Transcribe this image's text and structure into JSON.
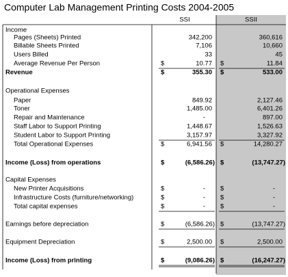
{
  "title": "Computer Lab Management Printing Costs 2004-2005",
  "columns": [
    "SSI",
    "SSII"
  ],
  "rows": [
    {
      "label": "Income"
    },
    {
      "label": "Pages (Sheets) Printed",
      "ssi": "342,200",
      "ssii": "360,616"
    },
    {
      "label": "Billable Sheets Printed",
      "ssi": "7,106",
      "ssii": "10,660"
    },
    {
      "label": "Users Billed",
      "ssi": "33",
      "ssii": "45"
    },
    {
      "label": "Average Revenue Per Person",
      "ssi_sign": "$",
      "ssi": "10.77",
      "ssii_sign": "$",
      "ssii": "11.84"
    },
    {
      "label": "Revenue",
      "ssi_sign": "$",
      "ssi": "355.30",
      "ssii_sign": "$",
      "ssii": "533.00"
    },
    {
      "label": "Operational Expenses"
    },
    {
      "label": "Paper",
      "ssi": "849.92",
      "ssii": "2,127.46"
    },
    {
      "label": "Toner",
      "ssi": "1,485.00",
      "ssii": "6,401.26"
    },
    {
      "label": "Repair and Maintenance",
      "ssi": "-",
      "ssii": "897.00"
    },
    {
      "label": "Staff Labor to Support Printing",
      "ssi": "1,448.67",
      "ssii": "1,526.63"
    },
    {
      "label": "Student Labor to Support Printing",
      "ssi": "3,157.97",
      "ssii": "3,327.92"
    },
    {
      "label": "Total Operational Expenses",
      "ssi_sign": "$",
      "ssi": "6,941.56",
      "ssii_sign": "$",
      "ssii": "14,280.27"
    },
    {
      "label": "Income (Loss) from operations",
      "ssi_sign": "$",
      "ssi": "(6,586.26)",
      "ssii_sign": "$",
      "ssii": "(13,747.27)"
    },
    {
      "label": "Capital Expenses"
    },
    {
      "label": "New Printer Acquisitions",
      "ssi_sign": "$",
      "ssi": "-",
      "ssii_sign": "$",
      "ssii": "-"
    },
    {
      "label": "Infrastructure Costs (furniture/networking)",
      "ssi_sign": "$",
      "ssi": "-",
      "ssii_sign": "$",
      "ssii": "-"
    },
    {
      "label": "Total capital expenses",
      "ssi_sign": "$",
      "ssi": "-",
      "ssii_sign": "$",
      "ssii": "-"
    },
    {
      "label": "Earnings before depreciation",
      "ssi_sign": "$",
      "ssi": "(6,586.26)",
      "ssii_sign": "$",
      "ssii": "(13,747.27)"
    },
    {
      "label": "Equipment Depreciation",
      "ssi_sign": "$",
      "ssi": "2,500.00",
      "ssii_sign": "$",
      "ssii": "2,500.00"
    },
    {
      "label": "Income (Loss) from printing",
      "ssi_sign": "$",
      "ssi": "(9,086.26)",
      "ssii_sign": "$",
      "ssii": "(16,247.27)"
    }
  ]
}
